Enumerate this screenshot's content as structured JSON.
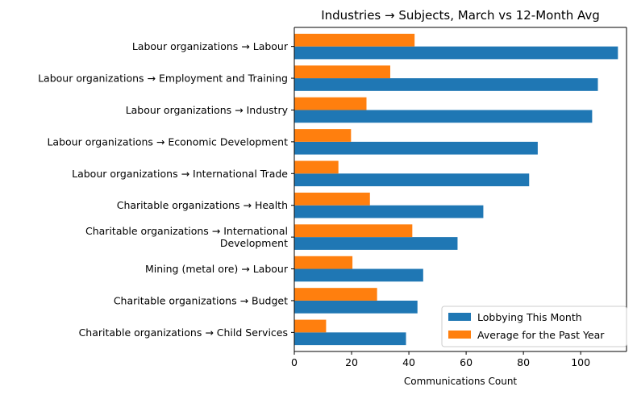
{
  "chart_data": {
    "type": "bar",
    "orientation": "horizontal",
    "title": "Industries → Subjects, March vs 12-Month Avg",
    "xlabel": "Communications Count",
    "ylabel": "",
    "xlim": [
      0,
      116
    ],
    "xticks": [
      0,
      20,
      40,
      60,
      80,
      100
    ],
    "categories": [
      [
        "Labour organizations → Labour"
      ],
      [
        "Labour organizations → Employment and Training"
      ],
      [
        "Labour organizations → Industry"
      ],
      [
        "Labour organizations → Economic Development"
      ],
      [
        "Labour organizations → International Trade"
      ],
      [
        "Charitable organizations → Health"
      ],
      [
        "Charitable organizations → International",
        "Development"
      ],
      [
        "Mining (metal ore) → Labour"
      ],
      [
        "Charitable organizations → Budget"
      ],
      [
        "Charitable organizations → Child Services"
      ]
    ],
    "series": [
      {
        "name": "Lobbying This Month",
        "color": "#1f77b4",
        "values": [
          113,
          106,
          104,
          85,
          82,
          66,
          57,
          45,
          43,
          39
        ]
      },
      {
        "name": "Average for the Past Year",
        "color": "#ff7f0e",
        "values": [
          42,
          33.5,
          25.2,
          19.8,
          15.4,
          26.4,
          41.2,
          20.3,
          28.9,
          11.1
        ]
      }
    ],
    "legend_position": "lower-right",
    "grid": false
  }
}
